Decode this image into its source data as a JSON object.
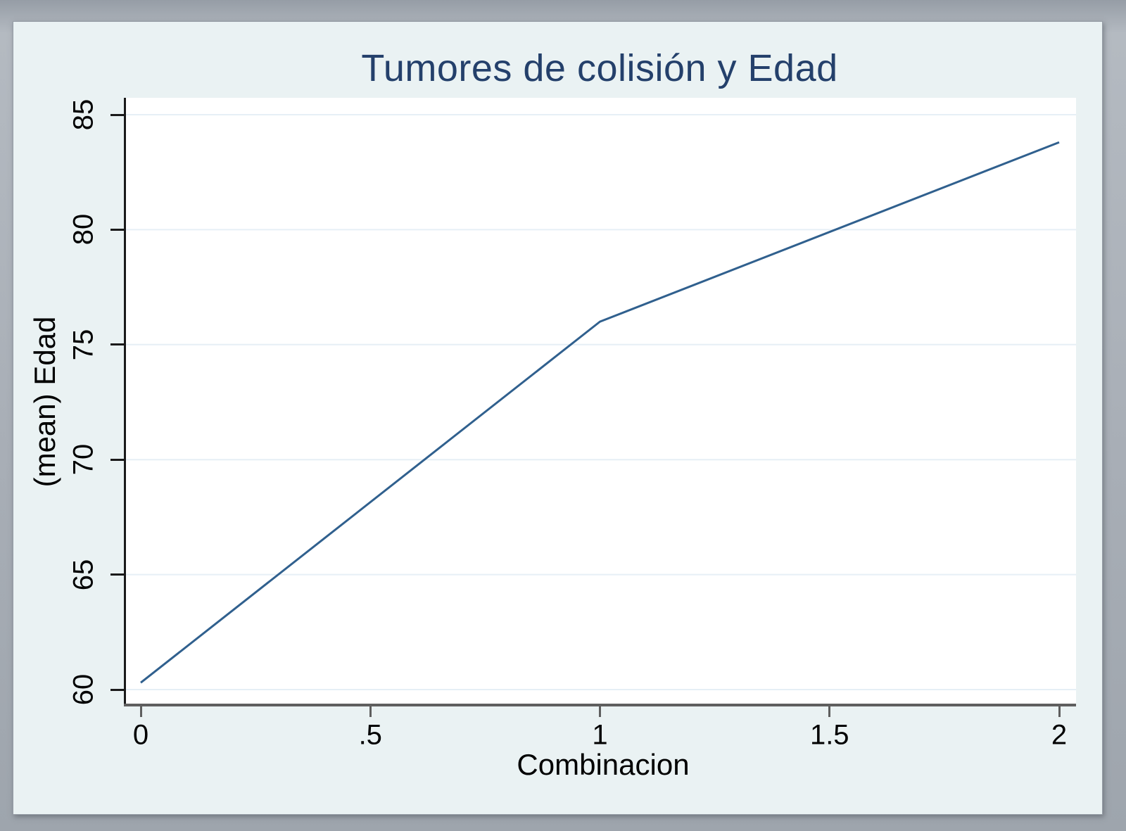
{
  "title": "Tumores de colisión y Edad",
  "colors": {
    "line": "#30608e",
    "title_text": "#24406b",
    "plot_background": "#ffffff",
    "canvas_background": "#eaf2f3",
    "frame_gray": "#a8aeb6",
    "gridline": "#e6eff6",
    "y_axis_line": "#1a1a1a",
    "x_axis_line": "#5f5f5f",
    "tick_text": "#000000"
  },
  "chart_data": {
    "type": "line",
    "title": "Tumores de colisión y Edad",
    "xlabel": "Combinacion",
    "ylabel": "(mean) Edad",
    "x": [
      0,
      1,
      2
    ],
    "y": [
      60.3,
      76.0,
      83.8
    ],
    "series": [
      {
        "name": "(mean) Edad",
        "x": [
          0,
          1,
          2
        ],
        "values": [
          60.3,
          76.0,
          83.8
        ]
      }
    ],
    "xlim": [
      0,
      2
    ],
    "ylim": [
      60,
      85
    ],
    "x_ticks": [
      {
        "value": 0,
        "label": "0"
      },
      {
        "value": 0.5,
        "label": ".5"
      },
      {
        "value": 1,
        "label": "1"
      },
      {
        "value": 1.5,
        "label": "1.5"
      },
      {
        "value": 2,
        "label": "2"
      }
    ],
    "y_ticks": [
      {
        "value": 60,
        "label": "60"
      },
      {
        "value": 65,
        "label": "65"
      },
      {
        "value": 70,
        "label": "70"
      },
      {
        "value": 75,
        "label": "75"
      },
      {
        "value": 80,
        "label": "80"
      },
      {
        "value": 85,
        "label": "85"
      }
    ],
    "grid": "horizontal-only",
    "legend": "none"
  }
}
